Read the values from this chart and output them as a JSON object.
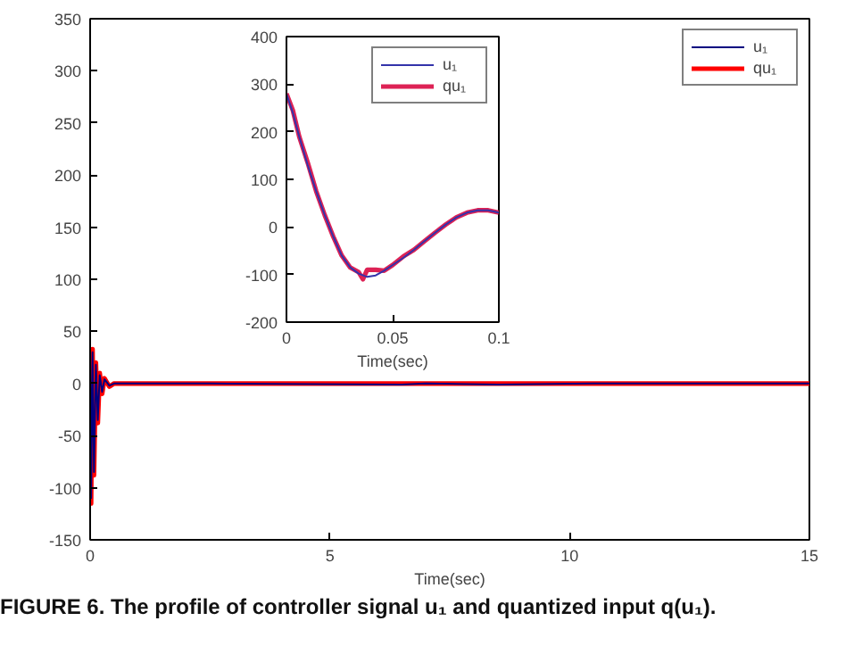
{
  "chart_data": [
    {
      "type": "line",
      "xlabel": "Time(sec)",
      "xlim": [
        0,
        15
      ],
      "ylim": [
        -150,
        350
      ],
      "xticks": [
        0,
        5,
        10,
        15
      ],
      "yticks": [
        -150,
        -100,
        -50,
        0,
        50,
        100,
        150,
        200,
        250,
        300,
        350
      ],
      "grid": false,
      "legend": "top right",
      "annotations": [
        "FIGURE 6.  The profile of controller signal u₁ and quantized input q(u₁)."
      ],
      "series": [
        {
          "name": "u₁",
          "color": "#000080",
          "x": [
            0,
            0.02,
            0.05,
            0.08,
            0.12,
            0.16,
            0.2,
            0.25,
            0.3,
            0.4,
            0.5,
            2.5,
            6.5,
            7,
            8.5,
            10.5,
            14.5,
            15
          ],
          "values": [
            30,
            -110,
            30,
            -85,
            18,
            -35,
            8,
            -8,
            4,
            -2,
            0,
            0,
            -1,
            0,
            -1,
            0,
            0,
            0
          ]
        },
        {
          "name": "qu₁",
          "color": "#ff0000",
          "x": [
            0,
            0.02,
            0.05,
            0.08,
            0.12,
            0.16,
            0.2,
            0.25,
            0.3,
            0.4,
            0.5,
            2.5,
            6.5,
            7,
            8.5,
            10.5,
            14.5,
            15
          ],
          "values": [
            35,
            -115,
            33,
            -88,
            20,
            -38,
            10,
            -10,
            5,
            -3,
            0,
            0,
            0,
            0,
            0,
            0,
            0,
            0
          ]
        }
      ]
    },
    {
      "type": "line",
      "xlabel": "Time(sec)",
      "xlim": [
        0,
        0.1
      ],
      "ylim": [
        -200,
        400
      ],
      "xticks": [
        0,
        0.05,
        0.1
      ],
      "yticks": [
        -200,
        -100,
        0,
        100,
        200,
        300,
        400
      ],
      "grid": false,
      "legend": "top right",
      "series": [
        {
          "name": "u₁",
          "color": "#3333aa",
          "x": [
            0,
            0.003,
            0.006,
            0.01,
            0.014,
            0.018,
            0.022,
            0.026,
            0.03,
            0.034,
            0.038,
            0.042,
            0.046,
            0.05,
            0.055,
            0.06,
            0.065,
            0.07,
            0.075,
            0.08,
            0.085,
            0.09,
            0.095,
            0.1
          ],
          "values": [
            280,
            240,
            190,
            130,
            75,
            25,
            -20,
            -60,
            -85,
            -98,
            -105,
            -102,
            -92,
            -80,
            -65,
            -48,
            -30,
            -12,
            5,
            20,
            30,
            35,
            35,
            30
          ]
        },
        {
          "name": "qu₁",
          "color": "#dd2255",
          "x": [
            0,
            0.003,
            0.006,
            0.01,
            0.014,
            0.018,
            0.022,
            0.026,
            0.03,
            0.034,
            0.036,
            0.038,
            0.042,
            0.046,
            0.05,
            0.055,
            0.06,
            0.065,
            0.07,
            0.075,
            0.08,
            0.085,
            0.09,
            0.095,
            0.1
          ],
          "values": [
            280,
            245,
            190,
            135,
            75,
            25,
            -20,
            -60,
            -85,
            -95,
            -110,
            -90,
            -90,
            -92,
            -80,
            -62,
            -48,
            -30,
            -12,
            5,
            20,
            30,
            35,
            35,
            30
          ]
        }
      ]
    }
  ]
}
